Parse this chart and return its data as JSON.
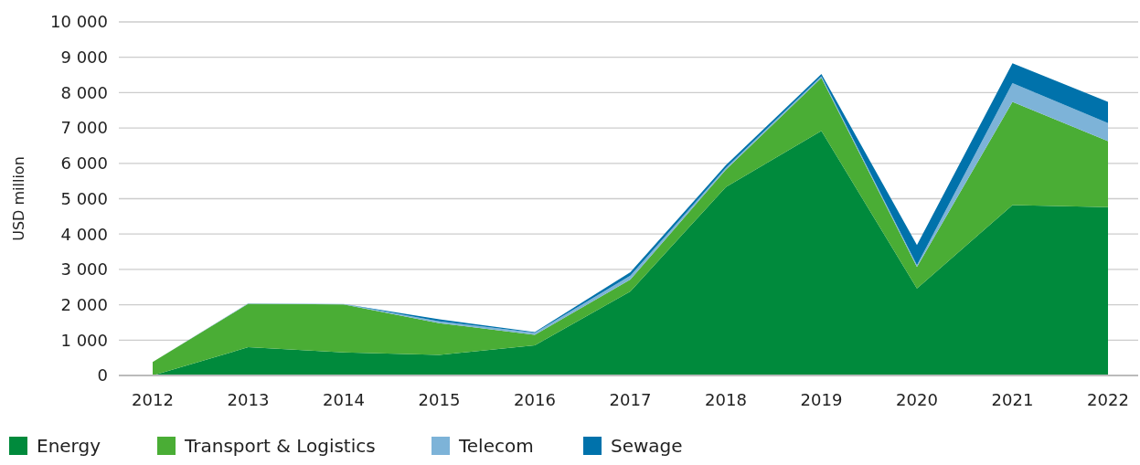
{
  "chart_data": {
    "type": "area",
    "stacked": true,
    "ylabel": "USD million",
    "categories": [
      "2012",
      "2013",
      "2014",
      "2015",
      "2016",
      "2017",
      "2018",
      "2019",
      "2020",
      "2021",
      "2022"
    ],
    "series": [
      {
        "name": "Energy",
        "color": "#008a3c",
        "values": [
          0,
          800,
          650,
          580,
          850,
          2380,
          5330,
          6920,
          2460,
          4820,
          4760
        ]
      },
      {
        "name": "Transport & Logistics",
        "color": "#4aad35",
        "values": [
          380,
          1230,
          1360,
          900,
          300,
          330,
          490,
          1500,
          610,
          2920,
          1870
        ]
      },
      {
        "name": "Telecom",
        "color": "#7db3d8",
        "values": [
          0,
          10,
          10,
          50,
          60,
          110,
          50,
          40,
          50,
          530,
          510
        ]
      },
      {
        "name": "Sewage",
        "color": "#0072ab",
        "values": [
          0,
          0,
          0,
          60,
          20,
          100,
          80,
          70,
          570,
          560,
          600
        ]
      }
    ],
    "ylim": [
      0,
      10000
    ],
    "yticks": [
      0,
      {
        "value": 1000,
        "label": "1 000"
      },
      {
        "value": 2000,
        "label": "2 000"
      },
      {
        "value": 3000,
        "label": "3 000"
      },
      {
        "value": 4000,
        "label": "4 000"
      },
      {
        "value": 5000,
        "label": "5 000"
      },
      {
        "value": 6000,
        "label": "6 000"
      },
      {
        "value": 7000,
        "label": "7 000"
      },
      {
        "value": 8000,
        "label": "8 000"
      },
      {
        "value": 9000,
        "label": "9 000"
      },
      {
        "value": 10000,
        "label": "10 000"
      }
    ],
    "grid": "y",
    "legend": "bottom"
  }
}
